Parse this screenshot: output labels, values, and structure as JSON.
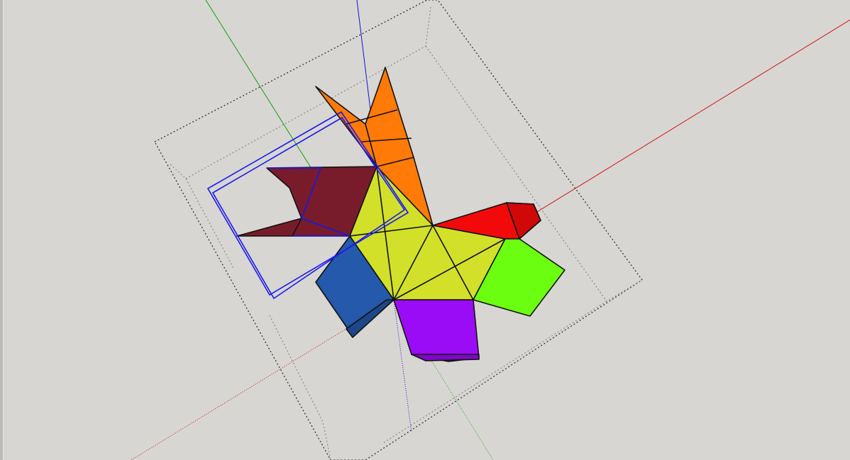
{
  "app": {
    "view": "3d-modeling-viewport",
    "background": "#d8d6d2"
  },
  "axes": {
    "red_axis": {
      "color": "#d01010"
    },
    "green_axis": {
      "color": "#10a010"
    },
    "blue_axis": {
      "color": "#1010d0"
    }
  },
  "bounding_box": {
    "color": "#333333",
    "style": "dotted"
  },
  "selection": {
    "color": "#1a1aee"
  },
  "model": {
    "faces": [
      {
        "name": "orange-face",
        "color": "#ff7a06"
      },
      {
        "name": "maroon-face",
        "color": "#781c2c"
      },
      {
        "name": "yellow-face",
        "color": "#d2e02a"
      },
      {
        "name": "red-face",
        "color": "#f20a0a"
      },
      {
        "name": "green-face",
        "color": "#6cfe10"
      },
      {
        "name": "purple-face",
        "color": "#9b0cf6"
      },
      {
        "name": "blue-face",
        "color": "#2459ab"
      }
    ]
  }
}
